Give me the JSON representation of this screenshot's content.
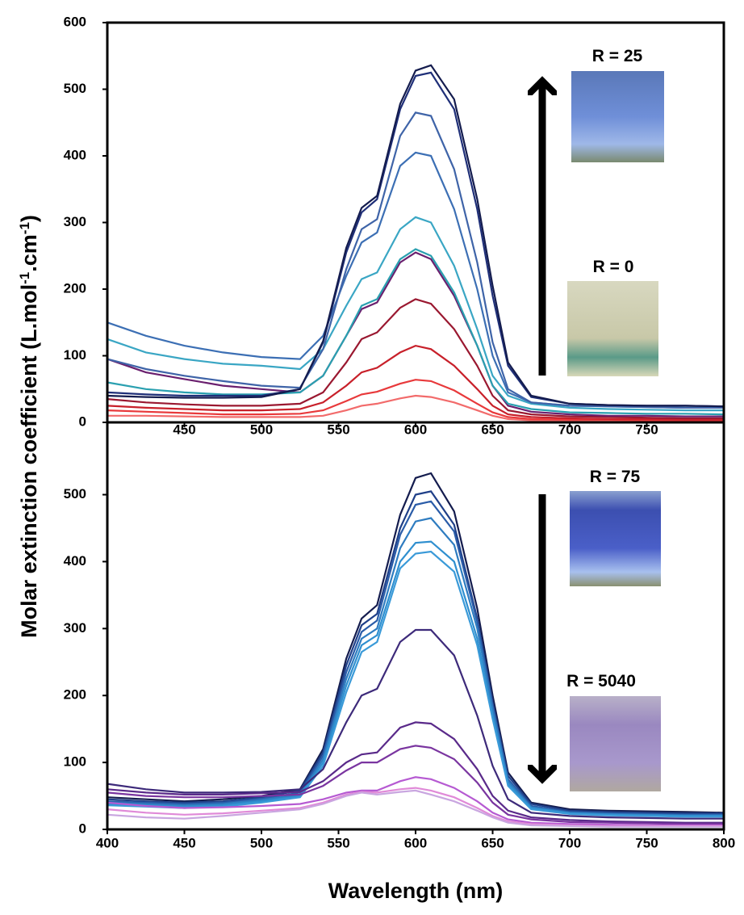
{
  "chart_data": [
    {
      "type": "line",
      "ylabel": [
        "Molar extinction coefficient  (L.mol",
        "-1",
        ".cm",
        "-1",
        ")"
      ],
      "x": [
        400,
        425,
        450,
        475,
        500,
        525,
        540,
        555,
        565,
        575,
        590,
        600,
        610,
        625,
        640,
        650,
        660,
        675,
        700,
        725,
        750,
        775,
        800
      ],
      "xlim": [
        400,
        800
      ],
      "ylim": [
        0,
        600
      ],
      "xticks": [
        450,
        500,
        550,
        600,
        650,
        700,
        750
      ],
      "yticks": [
        0,
        100,
        200,
        300,
        400,
        500,
        600
      ],
      "annotations": [
        "R = 25",
        "R = 0"
      ],
      "series": [
        {
          "color": "#f26b6b",
          "values": [
            10,
            10,
            9,
            8,
            8,
            8,
            10,
            18,
            25,
            28,
            36,
            40,
            38,
            30,
            18,
            10,
            5,
            3,
            2,
            2,
            2,
            2,
            2
          ]
        },
        {
          "color": "#e8393b",
          "values": [
            18,
            16,
            14,
            12,
            12,
            13,
            18,
            32,
            42,
            46,
            58,
            64,
            62,
            48,
            28,
            15,
            8,
            5,
            4,
            4,
            3,
            3,
            3
          ]
        },
        {
          "color": "#c8202a",
          "values": [
            25,
            22,
            20,
            18,
            18,
            20,
            30,
            55,
            75,
            82,
            105,
            115,
            110,
            85,
            50,
            25,
            12,
            8,
            6,
            5,
            5,
            4,
            4
          ]
        },
        {
          "color": "#9a1830",
          "values": [
            35,
            30,
            27,
            25,
            25,
            28,
            45,
            90,
            125,
            135,
            172,
            185,
            178,
            140,
            85,
            40,
            18,
            12,
            9,
            8,
            7,
            6,
            6
          ]
        },
        {
          "color": "#6a1f6e",
          "values": [
            95,
            75,
            65,
            55,
            50,
            45,
            70,
            130,
            170,
            180,
            240,
            255,
            245,
            190,
            115,
            55,
            25,
            16,
            12,
            10,
            10,
            9,
            9
          ]
        },
        {
          "color": "#2aa0b0",
          "values": [
            60,
            50,
            45,
            42,
            42,
            45,
            70,
            130,
            175,
            185,
            245,
            260,
            250,
            195,
            115,
            55,
            28,
            20,
            15,
            14,
            13,
            13,
            12
          ]
        },
        {
          "color": "#3aa6c4",
          "values": [
            125,
            105,
            95,
            88,
            85,
            80,
            110,
            175,
            215,
            225,
            290,
            308,
            300,
            235,
            140,
            70,
            40,
            28,
            22,
            20,
            19,
            18,
            18
          ]
        },
        {
          "color": "#3c6fb4",
          "values": [
            150,
            130,
            115,
            105,
            98,
            95,
            130,
            220,
            270,
            285,
            385,
            405,
            400,
            320,
            200,
            100,
            45,
            30,
            25,
            24,
            23,
            22,
            22
          ]
        },
        {
          "color": "#3f64a8",
          "values": [
            95,
            80,
            70,
            62,
            55,
            52,
            110,
            230,
            290,
            305,
            430,
            465,
            460,
            380,
            240,
            120,
            50,
            30,
            25,
            24,
            23,
            22,
            22
          ]
        },
        {
          "color": "#1f2f78",
          "values": [
            45,
            42,
            40,
            40,
            40,
            50,
            120,
            255,
            315,
            335,
            470,
            520,
            525,
            470,
            320,
            190,
            85,
            38,
            28,
            26,
            25,
            25,
            24
          ]
        },
        {
          "color": "#141c4e",
          "values": [
            40,
            38,
            37,
            37,
            38,
            50,
            122,
            262,
            322,
            340,
            478,
            528,
            536,
            485,
            335,
            205,
            90,
            40,
            28,
            26,
            25,
            25,
            24
          ]
        }
      ]
    },
    {
      "type": "line",
      "xlabel": "Wavelength (nm)",
      "x": [
        400,
        425,
        450,
        475,
        500,
        525,
        540,
        555,
        565,
        575,
        590,
        600,
        610,
        625,
        640,
        650,
        660,
        675,
        700,
        725,
        750,
        775,
        800
      ],
      "xlim": [
        400,
        800
      ],
      "ylim": [
        0,
        608
      ],
      "xticks": [
        400,
        450,
        500,
        550,
        600,
        650,
        700,
        750,
        800
      ],
      "yticks": [
        0,
        100,
        200,
        300,
        400,
        500
      ],
      "annotations": [
        "R = 75",
        "R = 5040"
      ],
      "series": [
        {
          "color": "#141c4e",
          "values": [
            48,
            45,
            42,
            45,
            50,
            60,
            120,
            255,
            315,
            335,
            470,
            525,
            532,
            475,
            330,
            200,
            85,
            40,
            30,
            28,
            27,
            26,
            25
          ]
        },
        {
          "color": "#1f3f88",
          "values": [
            45,
            42,
            40,
            42,
            48,
            58,
            115,
            245,
            305,
            322,
            450,
            500,
            505,
            455,
            315,
            190,
            80,
            38,
            28,
            26,
            25,
            24,
            24
          ]
        },
        {
          "color": "#2a5ca8",
          "values": [
            42,
            40,
            38,
            40,
            46,
            55,
            110,
            235,
            295,
            312,
            440,
            485,
            490,
            445,
            310,
            185,
            75,
            35,
            26,
            24,
            23,
            22,
            22
          ]
        },
        {
          "color": "#2e7cc0",
          "values": [
            40,
            38,
            36,
            38,
            44,
            52,
            105,
            225,
            285,
            300,
            420,
            460,
            465,
            425,
            300,
            180,
            72,
            33,
            25,
            23,
            22,
            21,
            21
          ]
        },
        {
          "color": "#2f8fcf",
          "values": [
            38,
            36,
            34,
            36,
            42,
            50,
            100,
            215,
            275,
            290,
            400,
            428,
            430,
            400,
            285,
            170,
            68,
            32,
            24,
            22,
            21,
            20,
            20
          ]
        },
        {
          "color": "#3a9ad8",
          "values": [
            36,
            34,
            32,
            34,
            40,
            48,
            95,
            205,
            265,
            280,
            390,
            412,
            415,
            385,
            275,
            165,
            65,
            30,
            23,
            21,
            20,
            19,
            19
          ]
        },
        {
          "color": "#3d2a7a",
          "values": [
            68,
            60,
            55,
            55,
            56,
            60,
            90,
            160,
            200,
            210,
            280,
            298,
            298,
            260,
            170,
            95,
            45,
            25,
            20,
            18,
            17,
            16,
            16
          ]
        },
        {
          "color": "#5a2a8a",
          "values": [
            60,
            55,
            52,
            52,
            54,
            56,
            72,
            100,
            112,
            115,
            152,
            160,
            158,
            135,
            90,
            50,
            28,
            18,
            14,
            12,
            11,
            10,
            10
          ]
        },
        {
          "color": "#7a35a0",
          "values": [
            55,
            50,
            48,
            48,
            50,
            52,
            65,
            88,
            100,
            100,
            120,
            125,
            122,
            105,
            70,
            40,
            22,
            15,
            11,
            10,
            9,
            8,
            8
          ]
        },
        {
          "color": "#b65ad2",
          "values": [
            40,
            35,
            32,
            33,
            35,
            38,
            45,
            55,
            58,
            58,
            72,
            78,
            75,
            62,
            42,
            25,
            15,
            10,
            8,
            7,
            6,
            6,
            6
          ]
        },
        {
          "color": "#e08ad8",
          "values": [
            30,
            25,
            22,
            24,
            28,
            32,
            40,
            52,
            56,
            55,
            60,
            62,
            58,
            48,
            32,
            20,
            12,
            8,
            6,
            5,
            5,
            5,
            5
          ]
        },
        {
          "color": "#c9a6e0",
          "values": [
            22,
            18,
            16,
            20,
            25,
            30,
            38,
            50,
            55,
            52,
            56,
            58,
            52,
            42,
            28,
            18,
            10,
            6,
            5,
            4,
            4,
            4,
            4
          ]
        }
      ]
    }
  ]
}
